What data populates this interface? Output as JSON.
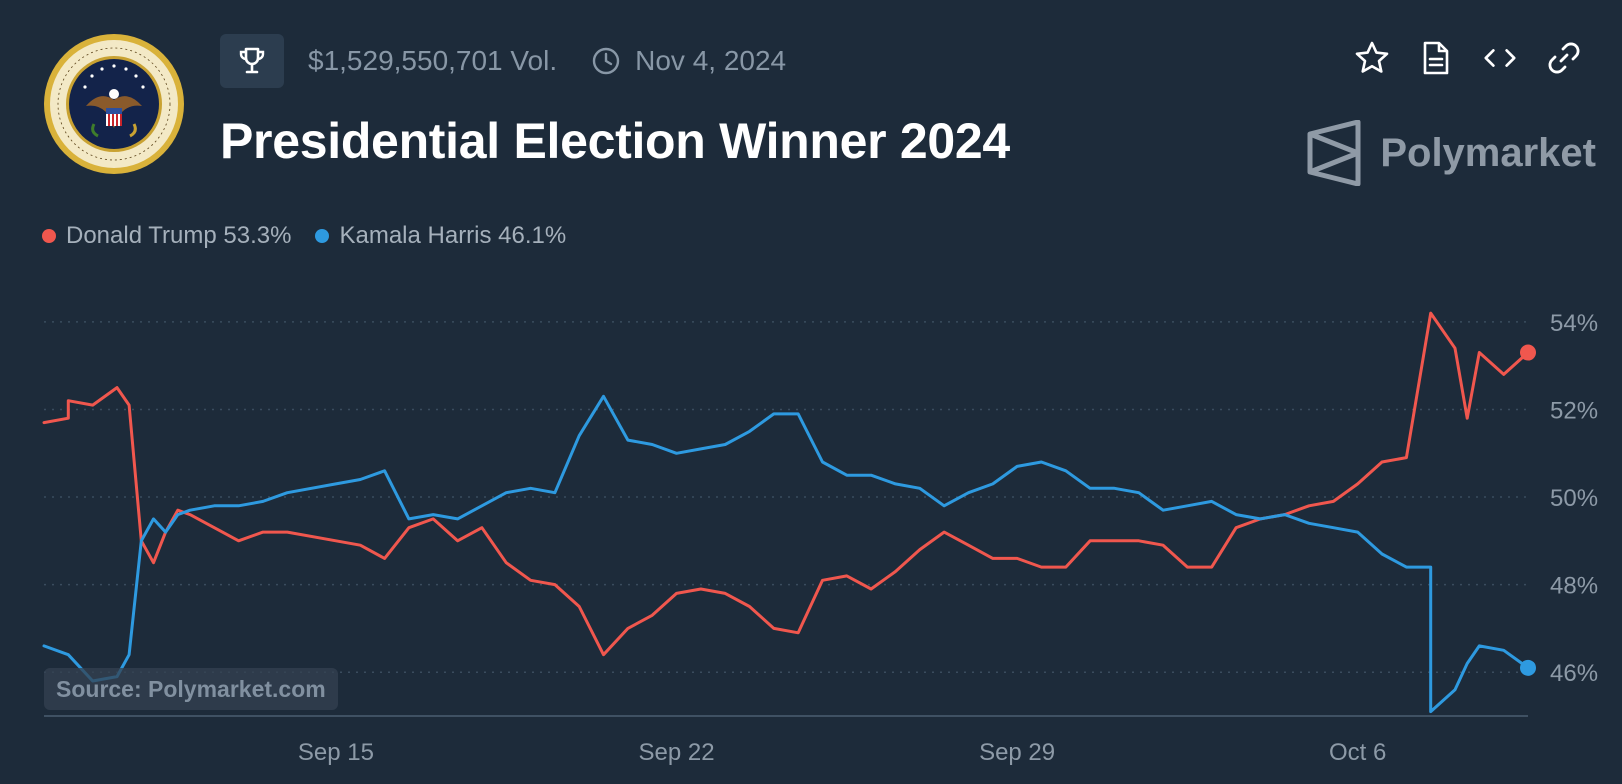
{
  "header": {
    "volume": "$1,529,550,701 Vol.",
    "date": "Nov 4, 2024",
    "title": "Presidential Election Winner 2024",
    "brand": "Polymarket"
  },
  "icons": {
    "seal": "presidential-seal-icon",
    "trophy": "trophy-icon",
    "clock": "clock-icon",
    "actions": [
      "star-icon",
      "document-icon",
      "code-icon",
      "link-icon"
    ],
    "brand_logo": "polymarket-logo-icon"
  },
  "legend": [
    {
      "label": "Donald Trump 53.3%",
      "color": "#f0574e"
    },
    {
      "label": "Kamala Harris 46.1%",
      "color": "#2e9ae0"
    }
  ],
  "source": "Source: Polymarket.com",
  "colors": {
    "background": "#1d2b3a",
    "trump": "#f0574e",
    "harris": "#2e9ae0"
  },
  "chart_data": {
    "type": "line",
    "ylim": [
      45,
      54.5
    ],
    "y_ticks": [
      54,
      52,
      50,
      48,
      46
    ],
    "y_tick_labels": [
      "54%",
      "52%",
      "50%",
      "48%",
      "46%"
    ],
    "x_range": [
      "2024-09-09",
      "2024-10-09"
    ],
    "x_ticks": [
      "2024-09-15",
      "2024-09-22",
      "2024-09-29",
      "2024-10-06"
    ],
    "x_tick_labels": [
      "Sep 15",
      "Sep 22",
      "Sep 29",
      "Oct 6"
    ],
    "grid": true,
    "legend_position": "top-left",
    "series": [
      {
        "name": "Donald Trump",
        "color": "#f0574e",
        "points": [
          [
            "2024-09-09",
            51.7
          ],
          [
            "2024-09-09 12:00",
            51.8
          ],
          [
            "2024-09-09 12:00",
            52.2
          ],
          [
            "2024-09-10",
            52.1
          ],
          [
            "2024-09-10 12:00",
            52.5
          ],
          [
            "2024-09-10 18:00",
            52.1
          ],
          [
            "2024-09-11",
            49.0
          ],
          [
            "2024-09-11 06:00",
            48.5
          ],
          [
            "2024-09-11 12:00",
            49.2
          ],
          [
            "2024-09-11 18:00",
            49.7
          ],
          [
            "2024-09-12",
            49.6
          ],
          [
            "2024-09-12 12:00",
            49.3
          ],
          [
            "2024-09-13",
            49.0
          ],
          [
            "2024-09-13 12:00",
            49.2
          ],
          [
            "2024-09-14",
            49.2
          ],
          [
            "2024-09-15",
            49.0
          ],
          [
            "2024-09-15 12:00",
            48.9
          ],
          [
            "2024-09-16",
            48.6
          ],
          [
            "2024-09-16 12:00",
            49.3
          ],
          [
            "2024-09-17",
            49.5
          ],
          [
            "2024-09-17 12:00",
            49.0
          ],
          [
            "2024-09-18",
            49.3
          ],
          [
            "2024-09-18 12:00",
            48.5
          ],
          [
            "2024-09-19",
            48.1
          ],
          [
            "2024-09-19 12:00",
            48.0
          ],
          [
            "2024-09-20",
            47.5
          ],
          [
            "2024-09-20 12:00",
            46.4
          ],
          [
            "2024-09-21",
            47.0
          ],
          [
            "2024-09-21 12:00",
            47.3
          ],
          [
            "2024-09-22",
            47.8
          ],
          [
            "2024-09-22 12:00",
            47.9
          ],
          [
            "2024-09-23",
            47.8
          ],
          [
            "2024-09-23 12:00",
            47.5
          ],
          [
            "2024-09-24",
            47.0
          ],
          [
            "2024-09-24 12:00",
            46.9
          ],
          [
            "2024-09-25",
            48.1
          ],
          [
            "2024-09-25 12:00",
            48.2
          ],
          [
            "2024-09-26",
            47.9
          ],
          [
            "2024-09-26 12:00",
            48.3
          ],
          [
            "2024-09-27",
            48.8
          ],
          [
            "2024-09-27 12:00",
            49.2
          ],
          [
            "2024-09-28",
            48.9
          ],
          [
            "2024-09-28 12:00",
            48.6
          ],
          [
            "2024-09-29",
            48.6
          ],
          [
            "2024-09-29 12:00",
            48.4
          ],
          [
            "2024-09-30",
            48.4
          ],
          [
            "2024-09-30 12:00",
            49.0
          ],
          [
            "2024-10-01",
            49.0
          ],
          [
            "2024-10-01 12:00",
            49.0
          ],
          [
            "2024-10-02",
            48.9
          ],
          [
            "2024-10-02 12:00",
            48.4
          ],
          [
            "2024-10-03",
            48.4
          ],
          [
            "2024-10-03 12:00",
            49.3
          ],
          [
            "2024-10-04",
            49.5
          ],
          [
            "2024-10-04 12:00",
            49.6
          ],
          [
            "2024-10-05",
            49.8
          ],
          [
            "2024-10-05 12:00",
            49.9
          ],
          [
            "2024-10-06",
            50.3
          ],
          [
            "2024-10-06 12:00",
            50.8
          ],
          [
            "2024-10-07",
            50.9
          ],
          [
            "2024-10-07 12:00",
            54.2
          ],
          [
            "2024-10-08",
            53.4
          ],
          [
            "2024-10-08 06:00",
            51.8
          ],
          [
            "2024-10-08 12:00",
            53.3
          ],
          [
            "2024-10-09",
            52.8
          ],
          [
            "2024-10-09 12:00",
            53.3
          ]
        ]
      },
      {
        "name": "Kamala Harris",
        "color": "#2e9ae0",
        "points": [
          [
            "2024-09-09",
            46.6
          ],
          [
            "2024-09-09 12:00",
            46.4
          ],
          [
            "2024-09-10",
            45.8
          ],
          [
            "2024-09-10 12:00",
            45.9
          ],
          [
            "2024-09-10 18:00",
            46.4
          ],
          [
            "2024-09-11",
            49.0
          ],
          [
            "2024-09-11 06:00",
            49.5
          ],
          [
            "2024-09-11 12:00",
            49.2
          ],
          [
            "2024-09-11 18:00",
            49.6
          ],
          [
            "2024-09-12",
            49.7
          ],
          [
            "2024-09-12 12:00",
            49.8
          ],
          [
            "2024-09-13",
            49.8
          ],
          [
            "2024-09-13 12:00",
            49.9
          ],
          [
            "2024-09-14",
            50.1
          ],
          [
            "2024-09-15",
            50.3
          ],
          [
            "2024-09-15 12:00",
            50.4
          ],
          [
            "2024-09-16",
            50.6
          ],
          [
            "2024-09-16 12:00",
            49.5
          ],
          [
            "2024-09-17",
            49.6
          ],
          [
            "2024-09-17 12:00",
            49.5
          ],
          [
            "2024-09-18",
            49.8
          ],
          [
            "2024-09-18 12:00",
            50.1
          ],
          [
            "2024-09-19",
            50.2
          ],
          [
            "2024-09-19 12:00",
            50.1
          ],
          [
            "2024-09-20",
            51.4
          ],
          [
            "2024-09-20 12:00",
            52.3
          ],
          [
            "2024-09-21",
            51.3
          ],
          [
            "2024-09-21 12:00",
            51.2
          ],
          [
            "2024-09-22",
            51.0
          ],
          [
            "2024-09-22 12:00",
            51.1
          ],
          [
            "2024-09-23",
            51.2
          ],
          [
            "2024-09-23 12:00",
            51.5
          ],
          [
            "2024-09-24",
            51.9
          ],
          [
            "2024-09-24 12:00",
            51.9
          ],
          [
            "2024-09-25",
            50.8
          ],
          [
            "2024-09-25 12:00",
            50.5
          ],
          [
            "2024-09-26",
            50.5
          ],
          [
            "2024-09-26 12:00",
            50.3
          ],
          [
            "2024-09-27",
            50.2
          ],
          [
            "2024-09-27 12:00",
            49.8
          ],
          [
            "2024-09-28",
            50.1
          ],
          [
            "2024-09-28 12:00",
            50.3
          ],
          [
            "2024-09-29",
            50.7
          ],
          [
            "2024-09-29 12:00",
            50.8
          ],
          [
            "2024-09-30",
            50.6
          ],
          [
            "2024-09-30 12:00",
            50.2
          ],
          [
            "2024-10-01",
            50.2
          ],
          [
            "2024-10-01 12:00",
            50.1
          ],
          [
            "2024-10-02",
            49.7
          ],
          [
            "2024-10-02 12:00",
            49.8
          ],
          [
            "2024-10-03",
            49.9
          ],
          [
            "2024-10-03 12:00",
            49.6
          ],
          [
            "2024-10-04",
            49.5
          ],
          [
            "2024-10-04 12:00",
            49.6
          ],
          [
            "2024-10-05",
            49.4
          ],
          [
            "2024-10-05 12:00",
            49.3
          ],
          [
            "2024-10-06",
            49.2
          ],
          [
            "2024-10-06 12:00",
            48.7
          ],
          [
            "2024-10-07",
            48.4
          ],
          [
            "2024-10-07 12:00",
            48.4
          ],
          [
            "2024-10-07 12:00",
            45.1
          ],
          [
            "2024-10-08",
            45.6
          ],
          [
            "2024-10-08 06:00",
            46.2
          ],
          [
            "2024-10-08 12:00",
            46.6
          ],
          [
            "2024-10-09",
            46.5
          ],
          [
            "2024-10-09 12:00",
            46.1
          ]
        ]
      }
    ]
  }
}
